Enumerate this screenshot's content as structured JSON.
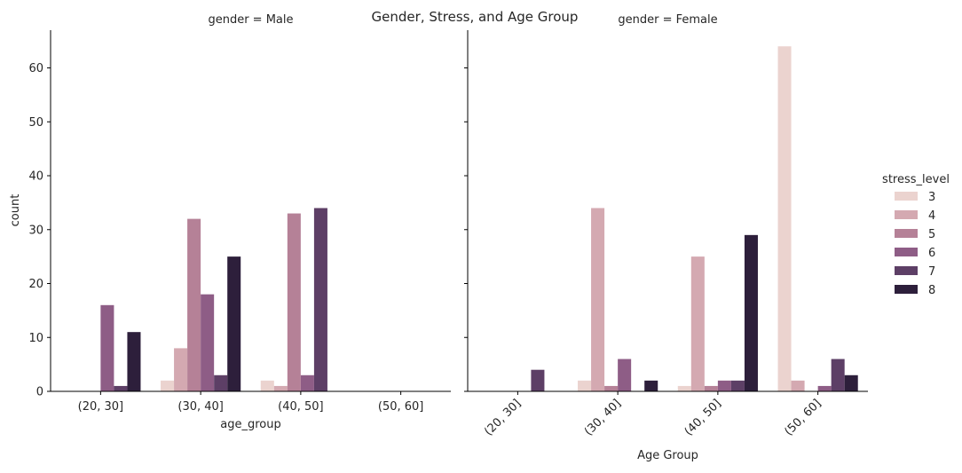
{
  "chart_data": {
    "type": "bar",
    "title": "Gender, Stress, and Age Group",
    "categories": [
      "(20, 30]",
      "(30, 40]",
      "(40, 50]",
      "(50, 60]"
    ],
    "ylabel": "count",
    "ylim": [
      0,
      67
    ],
    "yticks": [
      0,
      10,
      20,
      30,
      40,
      50,
      60
    ],
    "legend": {
      "title": "stress_level",
      "placement": "right",
      "entries": [
        "3",
        "4",
        "5",
        "6",
        "7",
        "8"
      ]
    },
    "colors": [
      "#ebd3cf",
      "#d4a9b1",
      "#b58197",
      "#8e5d86",
      "#5d3f66",
      "#2d1f3b"
    ],
    "panels": [
      {
        "title": "gender = Male",
        "xlabel": "age_group",
        "xtick_rotation": 0,
        "series": [
          {
            "name": "3",
            "values": [
              0,
              2,
              2,
              0
            ]
          },
          {
            "name": "4",
            "values": [
              0,
              8,
              1,
              0
            ]
          },
          {
            "name": "5",
            "values": [
              0,
              32,
              33,
              0
            ]
          },
          {
            "name": "6",
            "values": [
              16,
              18,
              3,
              0
            ]
          },
          {
            "name": "7",
            "values": [
              1,
              3,
              34,
              0
            ]
          },
          {
            "name": "8",
            "values": [
              11,
              25,
              0,
              0
            ]
          }
        ]
      },
      {
        "title": "gender = Female",
        "xlabel": "Age Group",
        "xtick_rotation": -45,
        "series": [
          {
            "name": "3",
            "values": [
              0,
              2,
              1,
              64
            ]
          },
          {
            "name": "4",
            "values": [
              0,
              34,
              25,
              2
            ]
          },
          {
            "name": "5",
            "values": [
              0,
              1,
              1,
              0
            ]
          },
          {
            "name": "6",
            "values": [
              0,
              6,
              2,
              1
            ]
          },
          {
            "name": "7",
            "values": [
              4,
              0,
              2,
              6
            ]
          },
          {
            "name": "8",
            "values": [
              0,
              2,
              29,
              3
            ]
          }
        ]
      }
    ]
  }
}
